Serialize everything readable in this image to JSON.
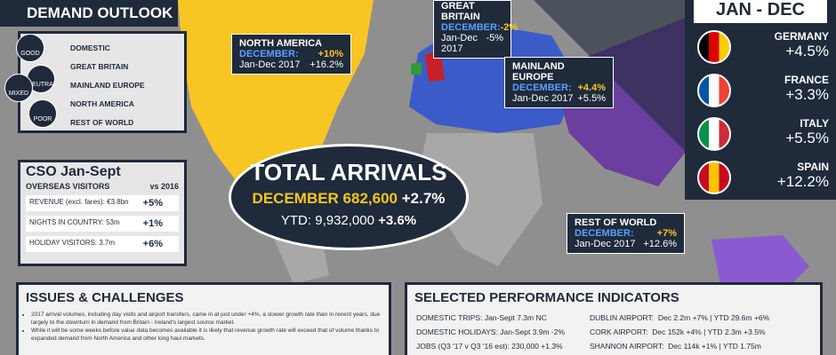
{
  "demand_outlook": {
    "title": "DEMAND OUTLOOK",
    "legend": [
      "GOOD",
      "NEUTRAL",
      "MIXED",
      "POOR"
    ],
    "rows": [
      "DOMESTIC",
      "GREAT BRITAIN",
      "MAINLAND EUROPE",
      "NORTH AMERICA",
      "REST OF WORLD"
    ]
  },
  "markets": [
    {
      "name": "NORTH AMERICA",
      "month_label": "DECEMBER:",
      "month_value": "+10%",
      "year_label": "Jan-Dec 2017",
      "year_value": "+16.2%"
    },
    {
      "name": "GREAT BRITAIN",
      "month_label": "DECEMBER:",
      "month_value": "-2%",
      "year_label": "Jan-Dec 2017",
      "year_value": "-5%"
    },
    {
      "name": "MAINLAND EUROPE",
      "month_label": "DECEMBER:",
      "month_value": "+4.4%",
      "year_label": "Jan-Dec 2017",
      "year_value": "+5.5%"
    },
    {
      "name": "REST OF WORLD",
      "month_label": "DECEMBER:",
      "month_value": "+7%",
      "year_label": "Jan-Dec 2017",
      "year_value": "+12.6%"
    }
  ],
  "jan_dec": {
    "title": "JAN - DEC",
    "countries": [
      {
        "name": "GERMANY",
        "value": "+4.5%"
      },
      {
        "name": "FRANCE",
        "value": "+3.3%"
      },
      {
        "name": "ITALY",
        "value": "+5.5%"
      },
      {
        "name": "SPAIN",
        "value": "+12.2%"
      }
    ]
  },
  "cso": {
    "title": "CSO Jan-Sept",
    "subtitle": "OVERSEAS VISITORS",
    "compare": "vs 2016",
    "rows": [
      {
        "label": "REVENUE (excl. fares): €3.8bn",
        "value": "+5%"
      },
      {
        "label": "NIGHTS IN COUNTRY: 53m",
        "value": "+1%"
      },
      {
        "label": "HOLIDAY VISITORS: 3.7m",
        "value": "+6%"
      }
    ]
  },
  "total": {
    "title": "TOTAL ARRIVALS",
    "december": "DECEMBER 682,600",
    "december_change": "+2.7%",
    "ytd": "YTD: 9,932,000",
    "ytd_change": "+3.6%"
  },
  "issues": {
    "title": "ISSUES & CHALLENGES",
    "bullets": [
      "2017 arrival volumes, including day visits and airport transfers, came in at just under +4%, a slower growth rate than in recent years, due largely to the downturn in demand from Britain - Ireland's largest source market.",
      "While it will be some weeks before value data becomes available it is likely that revenue growth rate will exceed that of volume thanks to expanded demand from North America and other long haul markets."
    ]
  },
  "indicators": {
    "title": "SELECTED PERFORMANCE INDICATORS",
    "left": [
      "DOMESTIC TRIPS: Jan-Sept 7.3m NC",
      "DOMESTIC HOLIDAYS: Jan-Sept 3.9m -2%",
      "JOBS (Q3 '17 v Q3 '16 est): 230,000 +1.3%"
    ],
    "right": [
      "DUBLIN AIRPORT:  Dec 2.2m +7% | YTD 29.6m +6%",
      "CORK AIRPORT:  Dec 152k +4% | YTD 2.3m +3.5%",
      "SHANNON AIRPORT:  Dec 114k +1% | YTD 1.75m"
    ]
  }
}
